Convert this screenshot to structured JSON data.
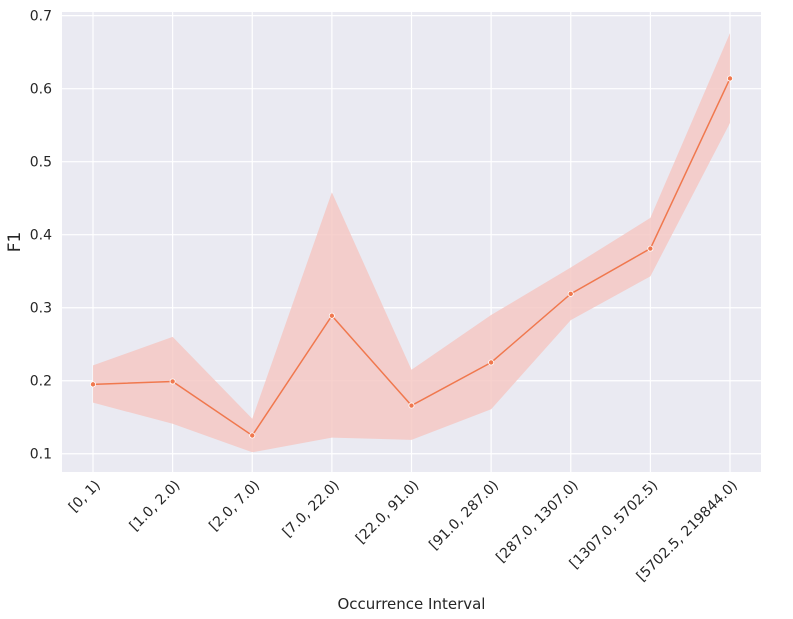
{
  "chart_data": {
    "type": "line",
    "title": "",
    "xlabel": "Occurrence Interval",
    "ylabel": "F1",
    "categories": [
      "[0, 1)",
      "[1.0, 2.0)",
      "[2.0, 7.0)",
      "[7.0, 22.0)",
      "[22.0, 91.0)",
      "[91.0, 287.0)",
      "[287.0, 1307.0)",
      "[1307.0, 5702.5)",
      "[5702.5, 219844.0)"
    ],
    "series": [
      {
        "values": [
          0.195,
          0.199,
          0.125,
          0.289,
          0.166,
          0.225,
          0.319,
          0.381,
          0.614
        ],
        "ci_lower": [
          0.17,
          0.141,
          0.102,
          0.122,
          0.119,
          0.161,
          0.283,
          0.343,
          0.553
        ],
        "ci_upper": [
          0.221,
          0.26,
          0.148,
          0.458,
          0.215,
          0.29,
          0.355,
          0.423,
          0.676
        ]
      }
    ],
    "ylim": [
      0.075,
      0.705
    ],
    "yticks": [
      0.1,
      0.2,
      0.3,
      0.4,
      0.5,
      0.6,
      0.7
    ],
    "ytick_labels": [
      "0.1",
      "0.2",
      "0.3",
      "0.4",
      "0.5",
      "0.6",
      "0.7"
    ],
    "grid": true,
    "legend": "none",
    "colors": {
      "line": "#f0784e",
      "band": "#f5c6c1",
      "plot_background": "#eaeaf2",
      "grid": "#ffffff"
    }
  }
}
